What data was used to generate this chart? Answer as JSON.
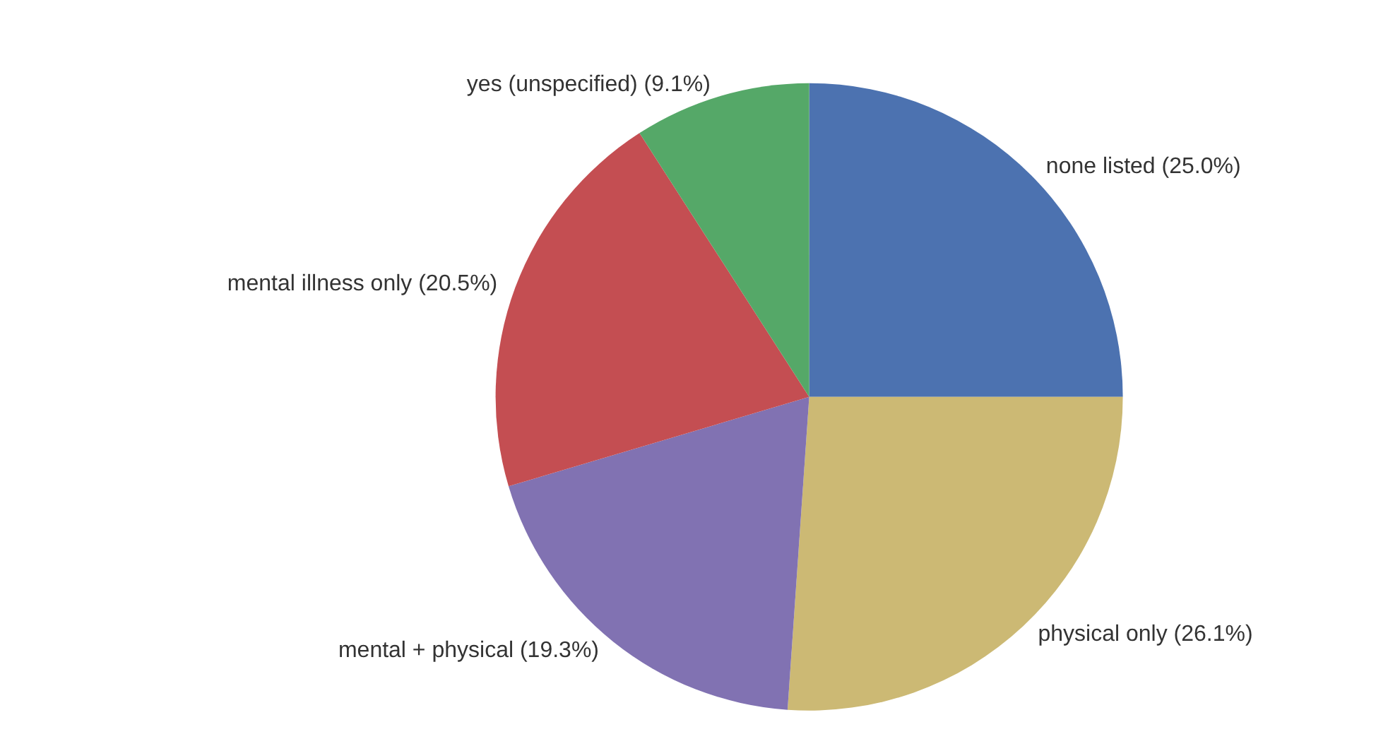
{
  "chart_data": {
    "type": "pie",
    "categories": [
      "none listed",
      "physical only",
      "mental + physical",
      "mental illness only",
      "yes (unspecified)"
    ],
    "values": [
      25.0,
      26.1,
      19.3,
      20.5,
      9.1
    ],
    "colors": [
      "#4c72b0",
      "#ccb974",
      "#8172b2",
      "#c44e52",
      "#55a868"
    ],
    "value_labels": [
      "(25.0%)",
      "(26.1%)",
      "(19.3%)",
      "(20.5%)",
      "(9.1%)"
    ]
  }
}
